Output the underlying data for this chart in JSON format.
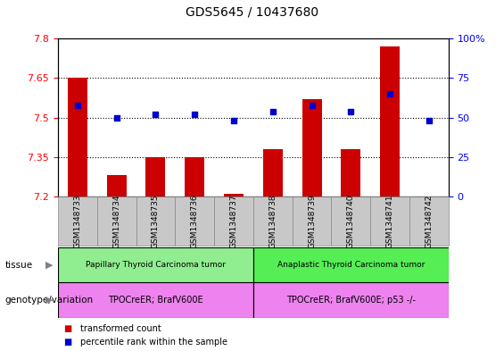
{
  "title": "GDS5645 / 10437680",
  "samples": [
    "GSM1348733",
    "GSM1348734",
    "GSM1348735",
    "GSM1348736",
    "GSM1348737",
    "GSM1348738",
    "GSM1348739",
    "GSM1348740",
    "GSM1348741",
    "GSM1348742"
  ],
  "transformed_counts": [
    7.65,
    7.28,
    7.35,
    7.35,
    7.21,
    7.38,
    7.57,
    7.38,
    7.77,
    7.2
  ],
  "percentile_ranks": [
    58,
    50,
    52,
    52,
    48,
    54,
    58,
    54,
    65,
    48
  ],
  "ylim_left": [
    7.2,
    7.8
  ],
  "ylim_right": [
    0,
    100
  ],
  "yticks_left": [
    7.2,
    7.35,
    7.5,
    7.65,
    7.8
  ],
  "yticks_right": [
    0,
    25,
    50,
    75,
    100
  ],
  "ytick_labels_left": [
    "7.2",
    "7.35",
    "7.5",
    "7.65",
    "7.8"
  ],
  "ytick_labels_right": [
    "0",
    "25",
    "50",
    "75",
    "100%"
  ],
  "bar_color": "#cc0000",
  "dot_color": "#0000cc",
  "tissue_groups": [
    {
      "label": "Papillary Thyroid Carcinoma tumor",
      "start": 0,
      "end": 5,
      "color": "#90ee90"
    },
    {
      "label": "Anaplastic Thyroid Carcinoma tumor",
      "start": 5,
      "end": 10,
      "color": "#55ee55"
    }
  ],
  "genotype_groups": [
    {
      "label": "TPOCreER; BrafV600E",
      "start": 0,
      "end": 5,
      "color": "#ee82ee"
    },
    {
      "label": "TPOCreER; BrafV600E; p53 -/-",
      "start": 5,
      "end": 10,
      "color": "#ee82ee"
    }
  ],
  "tissue_label": "tissue",
  "genotype_label": "genotype/variation",
  "legend_items": [
    {
      "label": "transformed count",
      "color": "#cc0000"
    },
    {
      "label": "percentile rank within the sample",
      "color": "#0000cc"
    }
  ],
  "bar_width": 0.5,
  "col_bg_color": "#c8c8c8",
  "col_edge_color": "#888888"
}
